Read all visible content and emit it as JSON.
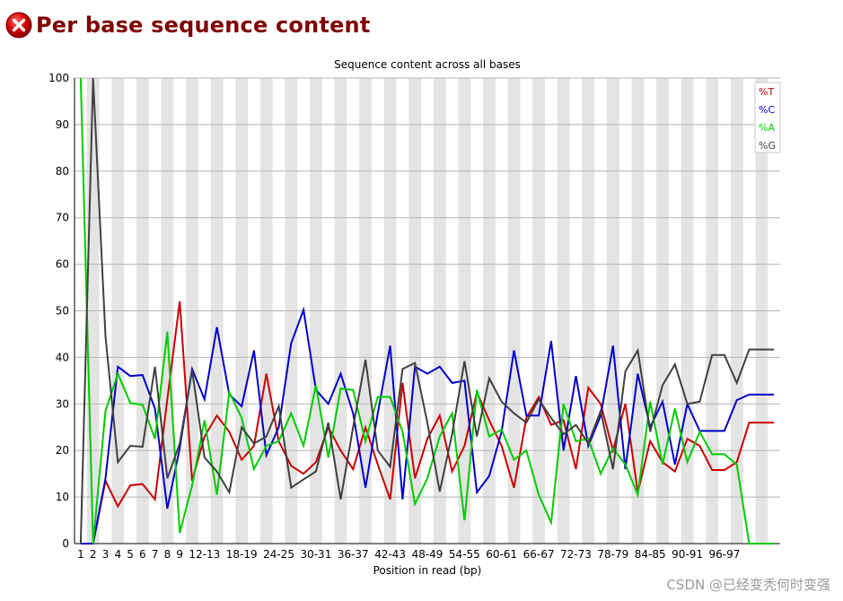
{
  "header": {
    "title": "Per base sequence content",
    "status_icon": "error-icon",
    "status_color": "#d00000"
  },
  "watermark": "CSDN @已经变秃何时变强",
  "chart_data": {
    "type": "line",
    "title": "Sequence content across all bases",
    "xlabel": "Position in read (bp)",
    "ylabel": "",
    "ylim": [
      0,
      100
    ],
    "yticks": [
      0,
      10,
      20,
      30,
      40,
      50,
      60,
      70,
      80,
      90,
      100
    ],
    "grid": true,
    "alternating_bands": true,
    "legend_position": "top-right",
    "categories": [
      "1",
      "2",
      "3",
      "4",
      "5",
      "6",
      "7",
      "8",
      "9",
      "10-11",
      "12-13",
      "14-15",
      "16-17",
      "18-19",
      "20-21",
      "22-23",
      "24-25",
      "26-27",
      "28-29",
      "30-31",
      "32-33",
      "34-35",
      "36-37",
      "38-39",
      "40-41",
      "42-43",
      "44-45",
      "46-47",
      "48-49",
      "50-51",
      "52-53",
      "54-55",
      "56-57",
      "58-59",
      "60-61",
      "62-63",
      "64-65",
      "66-67",
      "68-69",
      "70-71",
      "72-73",
      "74-75",
      "76-77",
      "78-79",
      "80-81",
      "82-83",
      "84-85",
      "86-87",
      "88-89",
      "90-91",
      "92-93",
      "94-95",
      "96-97",
      "98-99",
      "100-101",
      "102-103",
      "104-105"
    ],
    "tick_labels": [
      "1",
      "2",
      "3",
      "4",
      "5",
      "6",
      "7",
      "8",
      "9",
      "12-13",
      "18-19",
      "24-25",
      "30-31",
      "36-37",
      "42-43",
      "48-49",
      "54-55",
      "60-61",
      "66-67",
      "72-73",
      "78-79",
      "84-85",
      "90-91",
      "96-97"
    ],
    "series": [
      {
        "name": "%T",
        "color": "#cc0000",
        "values": [
          0,
          0,
          13.5,
          8,
          12.5,
          12.8,
          9.5,
          31,
          52,
          13.5,
          23,
          27.5,
          24,
          18,
          21,
          36.5,
          22,
          16.7,
          15,
          17.5,
          25,
          20,
          16,
          25,
          17,
          9.5,
          34.5,
          14,
          22.5,
          27.5,
          15.5,
          21,
          32.5,
          26.5,
          21,
          12,
          27,
          31.5,
          25.5,
          26.5,
          16,
          33.5,
          30,
          20,
          30,
          11,
          22,
          17.5,
          15.5,
          22.5,
          21,
          15.8,
          15.8,
          17.5,
          26,
          26,
          26
        ]
      },
      {
        "name": "%C",
        "color": "#0000cc",
        "values": [
          0,
          0,
          14,
          38,
          36,
          36.2,
          29,
          7.5,
          20.5,
          37.5,
          31,
          46.5,
          32,
          29.5,
          41.5,
          19,
          25,
          43,
          50.2,
          33,
          30,
          36.5,
          28,
          12,
          28,
          42.5,
          9.5,
          38,
          36.5,
          38,
          34.5,
          35,
          11,
          14.5,
          24,
          41.5,
          27.5,
          27.5,
          43.5,
          20,
          36,
          21,
          27.5,
          42.5,
          16,
          36.5,
          25,
          30.5,
          17,
          30,
          24.2,
          24.2,
          24.2,
          30.8,
          32,
          32,
          32
        ]
      },
      {
        "name": "%A",
        "color": "#00cc00",
        "values": [
          100,
          0,
          28.5,
          36.5,
          30.2,
          29.8,
          22.5,
          45.5,
          2.3,
          12.5,
          26.5,
          10.5,
          32.5,
          27,
          16,
          21,
          22,
          28,
          21,
          34,
          18.5,
          33.3,
          33,
          22,
          31.5,
          31.5,
          24,
          8.5,
          14,
          23,
          28,
          5,
          33,
          23,
          24.5,
          18,
          20,
          10.5,
          4.5,
          30,
          22,
          22.5,
          15,
          20.5,
          17,
          10.5,
          30.5,
          17,
          29,
          17.5,
          24,
          19.2,
          19.2,
          17,
          0,
          0,
          0
        ]
      },
      {
        "name": "%G",
        "color": "#404040",
        "values": [
          0,
          100,
          44.5,
          17.5,
          21,
          20.8,
          38,
          14,
          21.5,
          37.2,
          18.5,
          15.5,
          11,
          25,
          21.5,
          23,
          29.5,
          12,
          13.8,
          15.5,
          26,
          9.5,
          25,
          39.5,
          20,
          16.5,
          37.5,
          38.8,
          26,
          11.2,
          23.5,
          39.2,
          23,
          35.5,
          30.5,
          28,
          26,
          31,
          27,
          23.5,
          25.5,
          21.5,
          28.5,
          16,
          37,
          41.5,
          24,
          34,
          38.5,
          30,
          30.5,
          40.5,
          40.5,
          34.5,
          41.7,
          41.7,
          41.7
        ]
      }
    ]
  }
}
